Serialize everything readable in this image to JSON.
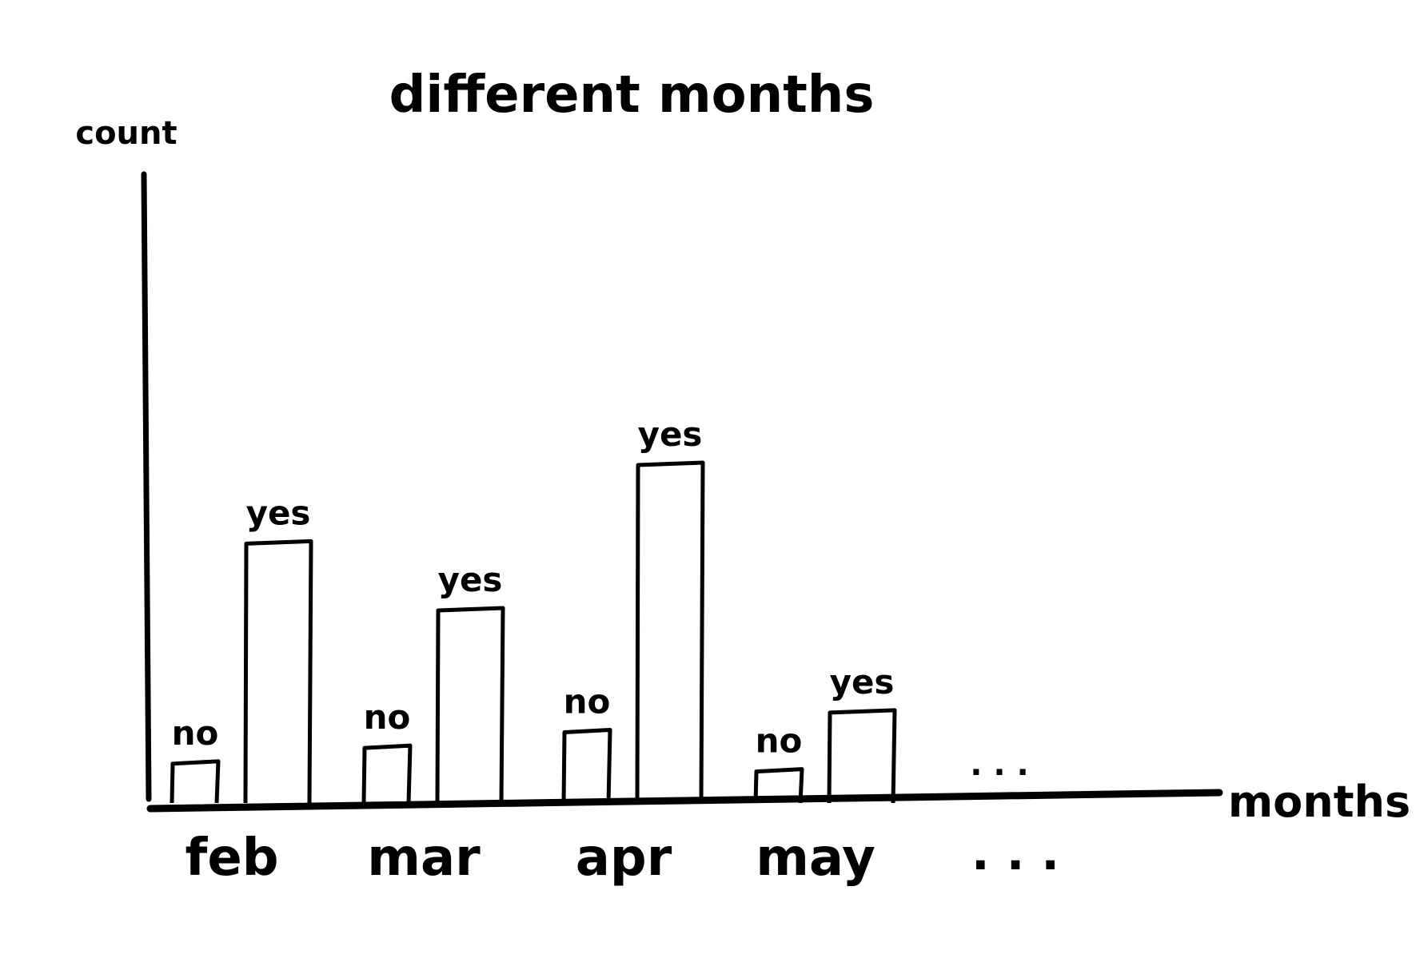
{
  "chart_data": {
    "type": "bar",
    "title": "different months",
    "xlabel": "months",
    "ylabel": "count",
    "categories": [
      "feb",
      "mar",
      "apr",
      "may"
    ],
    "series": [
      {
        "name": "no",
        "values": [
          1.0,
          1.4,
          1.8,
          0.8
        ]
      },
      {
        "name": "yes",
        "values": [
          6.6,
          4.9,
          8.6,
          2.3
        ]
      }
    ],
    "trailing_label": ". . .",
    "ylim": [
      0,
      16
    ],
    "grid": false,
    "legend": "none"
  }
}
